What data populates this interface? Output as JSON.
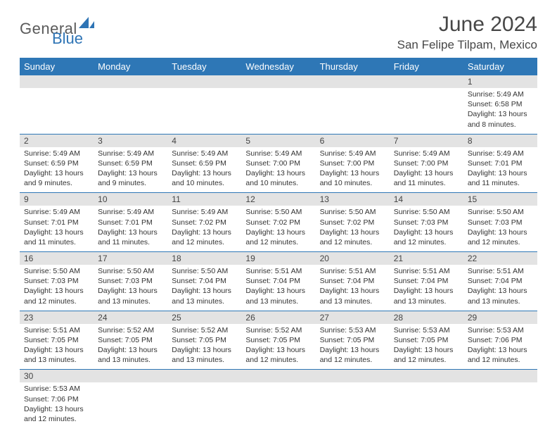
{
  "logo": {
    "text1": "General",
    "text2": "Blue"
  },
  "title": "June 2024",
  "location": "San Felipe Tilpam, Mexico",
  "colors": {
    "header_bg": "#2e77b6",
    "header_text": "#ffffff",
    "daynum_bg": "#e3e3e3",
    "cell_border": "#2e77b6",
    "body_text": "#333333",
    "title_text": "#474747",
    "logo_gray": "#5a5a5a",
    "logo_blue": "#2e74b5"
  },
  "typography": {
    "title_fontsize": 30,
    "location_fontsize": 17,
    "header_fontsize": 13,
    "daynum_fontsize": 12,
    "detail_fontsize": 10.5
  },
  "day_headers": [
    "Sunday",
    "Monday",
    "Tuesday",
    "Wednesday",
    "Thursday",
    "Friday",
    "Saturday"
  ],
  "weeks": [
    {
      "nums": [
        "",
        "",
        "",
        "",
        "",
        "",
        "1"
      ],
      "details": [
        "",
        "",
        "",
        "",
        "",
        "",
        "Sunrise: 5:49 AM\nSunset: 6:58 PM\nDaylight: 13 hours and 8 minutes."
      ]
    },
    {
      "nums": [
        "2",
        "3",
        "4",
        "5",
        "6",
        "7",
        "8"
      ],
      "details": [
        "Sunrise: 5:49 AM\nSunset: 6:59 PM\nDaylight: 13 hours and 9 minutes.",
        "Sunrise: 5:49 AM\nSunset: 6:59 PM\nDaylight: 13 hours and 9 minutes.",
        "Sunrise: 5:49 AM\nSunset: 6:59 PM\nDaylight: 13 hours and 10 minutes.",
        "Sunrise: 5:49 AM\nSunset: 7:00 PM\nDaylight: 13 hours and 10 minutes.",
        "Sunrise: 5:49 AM\nSunset: 7:00 PM\nDaylight: 13 hours and 10 minutes.",
        "Sunrise: 5:49 AM\nSunset: 7:00 PM\nDaylight: 13 hours and 11 minutes.",
        "Sunrise: 5:49 AM\nSunset: 7:01 PM\nDaylight: 13 hours and 11 minutes."
      ]
    },
    {
      "nums": [
        "9",
        "10",
        "11",
        "12",
        "13",
        "14",
        "15"
      ],
      "details": [
        "Sunrise: 5:49 AM\nSunset: 7:01 PM\nDaylight: 13 hours and 11 minutes.",
        "Sunrise: 5:49 AM\nSunset: 7:01 PM\nDaylight: 13 hours and 11 minutes.",
        "Sunrise: 5:49 AM\nSunset: 7:02 PM\nDaylight: 13 hours and 12 minutes.",
        "Sunrise: 5:50 AM\nSunset: 7:02 PM\nDaylight: 13 hours and 12 minutes.",
        "Sunrise: 5:50 AM\nSunset: 7:02 PM\nDaylight: 13 hours and 12 minutes.",
        "Sunrise: 5:50 AM\nSunset: 7:03 PM\nDaylight: 13 hours and 12 minutes.",
        "Sunrise: 5:50 AM\nSunset: 7:03 PM\nDaylight: 13 hours and 12 minutes."
      ]
    },
    {
      "nums": [
        "16",
        "17",
        "18",
        "19",
        "20",
        "21",
        "22"
      ],
      "details": [
        "Sunrise: 5:50 AM\nSunset: 7:03 PM\nDaylight: 13 hours and 12 minutes.",
        "Sunrise: 5:50 AM\nSunset: 7:03 PM\nDaylight: 13 hours and 13 minutes.",
        "Sunrise: 5:50 AM\nSunset: 7:04 PM\nDaylight: 13 hours and 13 minutes.",
        "Sunrise: 5:51 AM\nSunset: 7:04 PM\nDaylight: 13 hours and 13 minutes.",
        "Sunrise: 5:51 AM\nSunset: 7:04 PM\nDaylight: 13 hours and 13 minutes.",
        "Sunrise: 5:51 AM\nSunset: 7:04 PM\nDaylight: 13 hours and 13 minutes.",
        "Sunrise: 5:51 AM\nSunset: 7:04 PM\nDaylight: 13 hours and 13 minutes."
      ]
    },
    {
      "nums": [
        "23",
        "24",
        "25",
        "26",
        "27",
        "28",
        "29"
      ],
      "details": [
        "Sunrise: 5:51 AM\nSunset: 7:05 PM\nDaylight: 13 hours and 13 minutes.",
        "Sunrise: 5:52 AM\nSunset: 7:05 PM\nDaylight: 13 hours and 13 minutes.",
        "Sunrise: 5:52 AM\nSunset: 7:05 PM\nDaylight: 13 hours and 13 minutes.",
        "Sunrise: 5:52 AM\nSunset: 7:05 PM\nDaylight: 13 hours and 12 minutes.",
        "Sunrise: 5:53 AM\nSunset: 7:05 PM\nDaylight: 13 hours and 12 minutes.",
        "Sunrise: 5:53 AM\nSunset: 7:05 PM\nDaylight: 13 hours and 12 minutes.",
        "Sunrise: 5:53 AM\nSunset: 7:06 PM\nDaylight: 13 hours and 12 minutes."
      ]
    },
    {
      "nums": [
        "30",
        "",
        "",
        "",
        "",
        "",
        ""
      ],
      "details": [
        "Sunrise: 5:53 AM\nSunset: 7:06 PM\nDaylight: 13 hours and 12 minutes.",
        "",
        "",
        "",
        "",
        "",
        ""
      ]
    }
  ]
}
